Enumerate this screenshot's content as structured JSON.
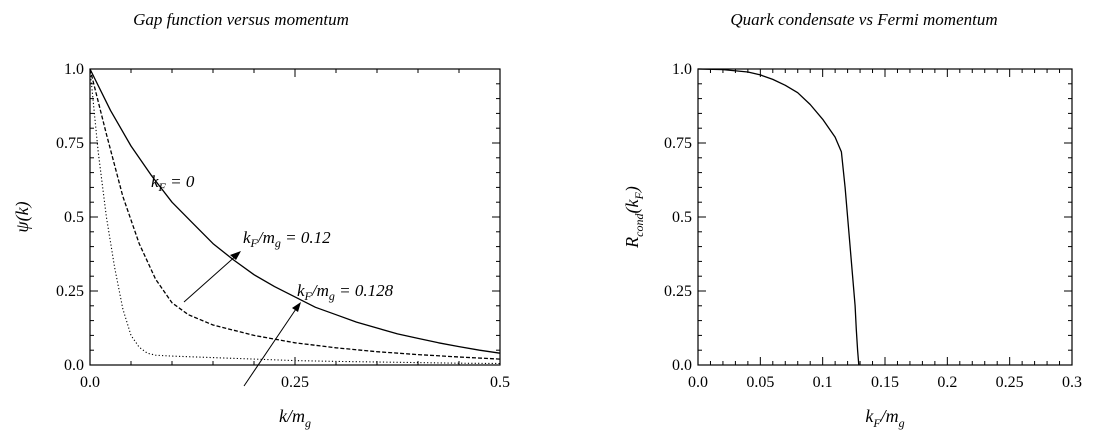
{
  "chart_data": [
    {
      "type": "line",
      "title": "Gap function versus momentum",
      "xlabel": "k/m_g",
      "ylabel": "ψ(k)",
      "xlim": [
        0,
        0.5
      ],
      "ylim": [
        0,
        1
      ],
      "x_ticks": [
        0.0,
        0.25,
        0.5
      ],
      "x_tick_labels": [
        "0.0",
        "0.25",
        "0.5"
      ],
      "y_ticks": [
        0.0,
        0.25,
        0.5,
        0.75,
        1.0
      ],
      "y_tick_labels": [
        "0.0",
        "0.25",
        "0.5",
        "0.75",
        "1.0"
      ],
      "grid": false,
      "legend": "none",
      "series": [
        {
          "name": "k_F = 0",
          "style": "solid",
          "x": [
            0,
            0.025,
            0.05,
            0.075,
            0.1,
            0.125,
            0.15,
            0.175,
            0.2,
            0.225,
            0.25,
            0.275,
            0.3,
            0.325,
            0.35,
            0.375,
            0.4,
            0.425,
            0.45,
            0.475,
            0.5
          ],
          "y": [
            1.0,
            0.86,
            0.74,
            0.64,
            0.55,
            0.48,
            0.41,
            0.355,
            0.305,
            0.265,
            0.23,
            0.195,
            0.17,
            0.145,
            0.125,
            0.105,
            0.09,
            0.075,
            0.062,
            0.05,
            0.04
          ]
        },
        {
          "name": "k_F/m_g = 0.12",
          "style": "dashed",
          "x": [
            0,
            0.02,
            0.04,
            0.06,
            0.08,
            0.1,
            0.12,
            0.15,
            0.2,
            0.25,
            0.3,
            0.35,
            0.4,
            0.45,
            0.5
          ],
          "y": [
            1.0,
            0.78,
            0.57,
            0.41,
            0.29,
            0.21,
            0.17,
            0.135,
            0.1,
            0.075,
            0.058,
            0.045,
            0.035,
            0.027,
            0.02
          ]
        },
        {
          "name": "k_F/m_g = 0.128",
          "style": "dotted",
          "x": [
            0,
            0.01,
            0.02,
            0.03,
            0.04,
            0.05,
            0.06,
            0.07,
            0.08,
            0.1,
            0.15,
            0.2,
            0.25,
            0.3,
            0.35,
            0.4,
            0.45,
            0.5
          ],
          "y": [
            1.0,
            0.72,
            0.5,
            0.33,
            0.19,
            0.1,
            0.06,
            0.04,
            0.033,
            0.03,
            0.025,
            0.02,
            0.015,
            0.012,
            0.01,
            0.008,
            0.006,
            0.005
          ]
        }
      ]
    },
    {
      "type": "line",
      "title": "Quark condensate vs Fermi momentum",
      "xlabel": "k_F/m_g",
      "ylabel": "R_cond(k_F)",
      "xlim": [
        0,
        0.3
      ],
      "ylim": [
        0,
        1
      ],
      "x_ticks": [
        0.0,
        0.05,
        0.1,
        0.15,
        0.2,
        0.25,
        0.3
      ],
      "x_tick_labels": [
        "0.0",
        "0.05",
        "0.1",
        "0.15",
        "0.2",
        "0.25",
        "0.3"
      ],
      "y_ticks": [
        0.0,
        0.25,
        0.5,
        0.75,
        1.0
      ],
      "y_tick_labels": [
        "0.0",
        "0.25",
        "0.5",
        "0.75",
        "1.0"
      ],
      "grid": false,
      "legend": "none",
      "series": [
        {
          "style": "solid",
          "x": [
            0,
            0.02,
            0.04,
            0.05,
            0.06,
            0.07,
            0.08,
            0.09,
            0.1,
            0.11,
            0.115,
            0.118,
            0.12,
            0.122,
            0.124,
            0.126,
            0.127,
            0.128,
            0.129
          ],
          "y": [
            1.0,
            0.998,
            0.99,
            0.98,
            0.965,
            0.945,
            0.92,
            0.88,
            0.83,
            0.77,
            0.72,
            0.6,
            0.5,
            0.4,
            0.3,
            0.2,
            0.12,
            0.05,
            0.0
          ]
        }
      ]
    }
  ],
  "annotations": {
    "label_kf0": "k_F = 0",
    "label_012": "k_F/m_g = 0.12",
    "label_0128": "k_F/m_g = 0.128"
  }
}
